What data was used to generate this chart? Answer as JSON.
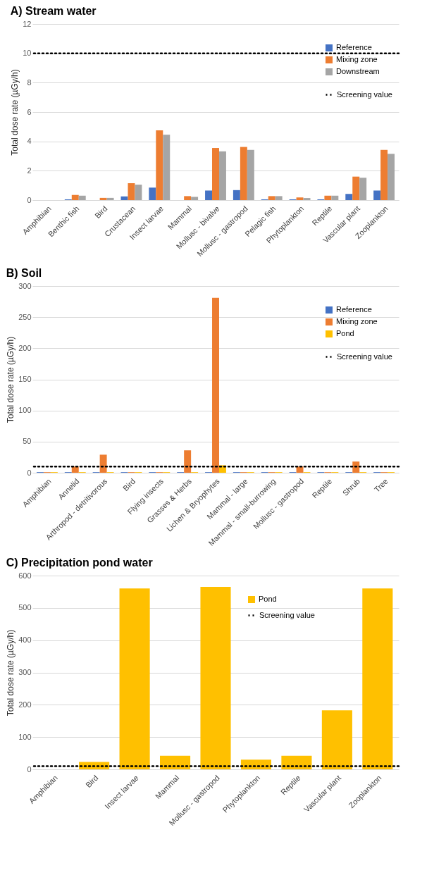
{
  "chart_data": [
    {
      "type": "bar",
      "title": "A) Stream water",
      "ylabel": "Total dose rate (µGy/h)",
      "categories": [
        "Amphibian",
        "Benthic fish",
        "Bird",
        "Crustacean",
        "Insect larvae",
        "Mammal",
        "Mollusc - bivalve",
        "Mollusc - gastropod",
        "Pelagic fish",
        "Phytoplankton",
        "Reptile",
        "Vascular plant",
        "Zooplankton"
      ],
      "series": [
        {
          "name": "Reference",
          "color": "#4472c4",
          "values": [
            0,
            0.05,
            0,
            0.25,
            0.85,
            0,
            0.65,
            0.68,
            0.05,
            0.05,
            0.05,
            0.42,
            0.65
          ]
        },
        {
          "name": "Mixing zone",
          "color": "#ed7d31",
          "values": [
            0,
            0.35,
            0.15,
            1.15,
            4.75,
            0.27,
            3.55,
            3.62,
            0.27,
            0.18,
            0.3,
            1.6,
            3.42
          ]
        },
        {
          "name": "Downstream",
          "color": "#a5a5a5",
          "values": [
            0,
            0.3,
            0.15,
            1.05,
            4.45,
            0.22,
            3.32,
            3.42,
            0.27,
            0.14,
            0.3,
            1.52,
            3.15
          ]
        }
      ],
      "ylim": [
        0,
        12
      ],
      "yticks": [
        0,
        2,
        4,
        6,
        8,
        10,
        12
      ],
      "grid": "y",
      "legend": "top right",
      "ref_lines": [
        {
          "axis": "y",
          "value": 10,
          "label": "Screening value",
          "color": "#000000",
          "line_style": "dotted"
        }
      ]
    },
    {
      "type": "bar",
      "title": "B) Soil",
      "ylabel": "Total dose rate (µGy/h)",
      "categories": [
        "Amphibian",
        "Annelid",
        "Arthropod - detritivorous",
        "Bird",
        "Flying insects",
        "Grasses & Herbs",
        "Lichen & Bryophytes",
        "Mammal - large",
        "Mammal - small-burrowing",
        "Mollusc - gastropod",
        "Reptile",
        "Shrub",
        "Tree"
      ],
      "series": [
        {
          "name": "Reference",
          "color": "#4472c4",
          "values": [
            1,
            1,
            1,
            1,
            1,
            1,
            1,
            1,
            1,
            1,
            1,
            1,
            1
          ]
        },
        {
          "name": "Mixing zone",
          "color": "#ed7d31",
          "values": [
            1,
            10,
            29,
            1,
            1,
            36,
            281,
            1,
            1,
            10,
            1,
            18,
            1
          ]
        },
        {
          "name": "Pond",
          "color": "#ffc000",
          "values": [
            1,
            1,
            1,
            1,
            1,
            1,
            12,
            1,
            1,
            1,
            1,
            1,
            1
          ]
        }
      ],
      "ylim": [
        0,
        300
      ],
      "yticks": [
        0,
        50,
        100,
        150,
        200,
        250,
        300
      ],
      "grid": "y",
      "legend": "top right",
      "ref_lines": [
        {
          "axis": "y",
          "value": 10,
          "label": "Screening value",
          "color": "#000000",
          "line_style": "dotted"
        }
      ]
    },
    {
      "type": "bar",
      "title": "C) Precipitation pond water",
      "ylabel": "Total dose rate (µGy/h)",
      "categories": [
        "Amphibian",
        "Bird",
        "Insect larvae",
        "Mammal",
        "Mollusc - gastropod",
        "Phytoplankton",
        "Reptile",
        "Vascular plant",
        "Zooplankton"
      ],
      "series": [
        {
          "name": "Pond",
          "color": "#ffc000",
          "values": [
            0,
            23,
            560,
            42,
            565,
            30,
            42,
            183,
            560
          ]
        }
      ],
      "ylim": [
        0,
        600
      ],
      "yticks": [
        0,
        100,
        200,
        300,
        400,
        500,
        600
      ],
      "grid": "y",
      "legend": "top",
      "ref_lines": [
        {
          "axis": "y",
          "value": 10,
          "label": "Screening value",
          "color": "#000000",
          "line_style": "dotted"
        }
      ]
    }
  ]
}
